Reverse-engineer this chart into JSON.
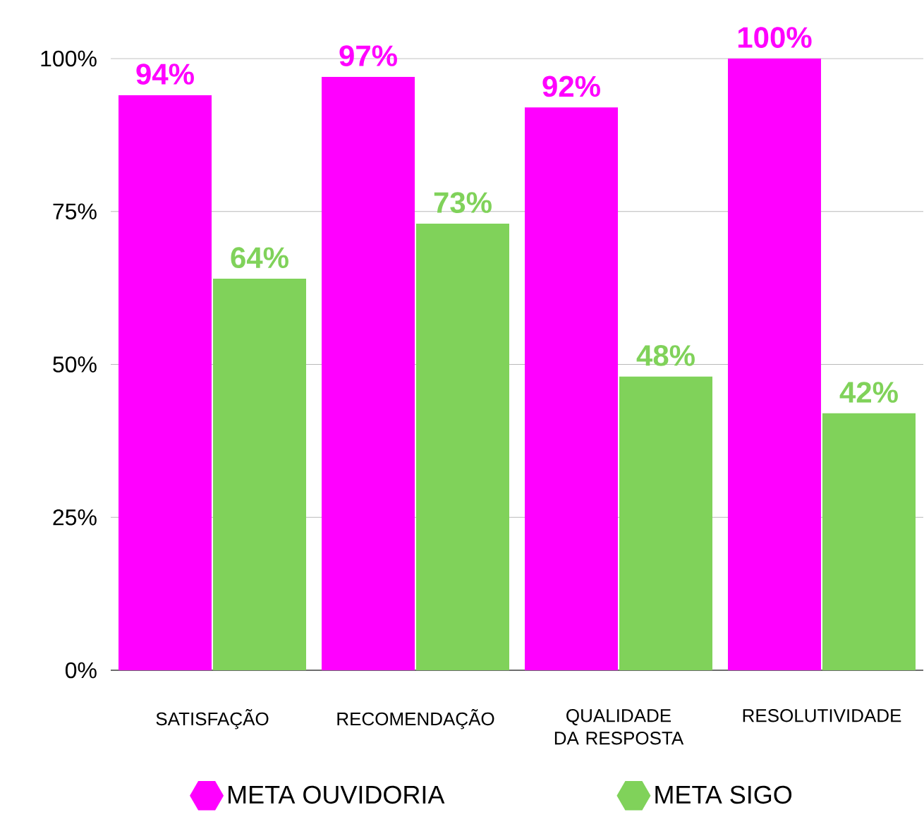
{
  "chart_data": {
    "type": "bar",
    "categories": [
      "SATISFAÇÃO",
      "RECOMENDAÇÃO",
      "QUALIDADE DA RESPOSTA",
      "RESOLUTIVIDADE"
    ],
    "series": [
      {
        "name": "META OUVIDORIA",
        "color": "#ff00ff",
        "values": [
          94,
          97,
          92,
          100
        ],
        "value_labels": [
          "94%",
          "97%",
          "92%",
          "100%"
        ]
      },
      {
        "name": "META SIGO",
        "color": "#80d25a",
        "values": [
          64,
          73,
          48,
          42
        ],
        "value_labels": [
          "64%",
          "73%",
          "48%",
          "42%"
        ]
      }
    ],
    "ylim": [
      0,
      100
    ],
    "yticks": [
      {
        "value": 0,
        "label": "0%"
      },
      {
        "value": 25,
        "label": "25%"
      },
      {
        "value": 50,
        "label": "50%"
      },
      {
        "value": 75,
        "label": "75%"
      },
      {
        "value": 100,
        "label": "100%"
      }
    ],
    "grid": "y",
    "legend": "bottom"
  }
}
